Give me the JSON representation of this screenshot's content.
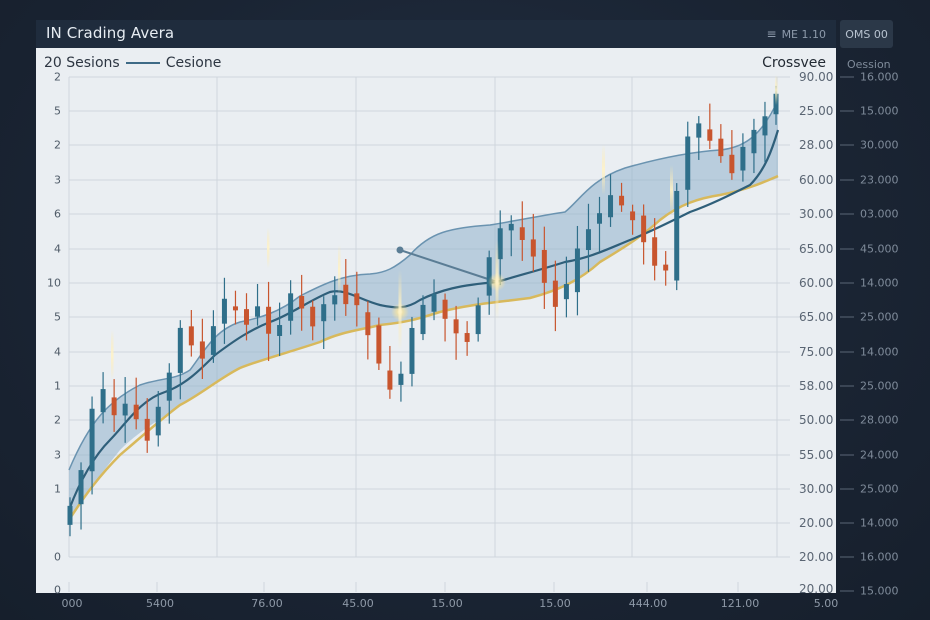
{
  "window": {
    "title": "IN Crading Avera",
    "menu_indicator": "ME 1.10",
    "oms_button_label": "OMS 00"
  },
  "legend": {
    "left_label": "20 Sesions",
    "series_label": "Cesione",
    "crossover_label": "Crossvee"
  },
  "colors": {
    "background": "#1a2433",
    "panel": "#eaeef2",
    "bullish": "#2f6f8a",
    "bearish": "#c8552e",
    "band_fill": "#8fb3cc",
    "band_edge": "#5d88a6",
    "ma_line": "#2f5f7a",
    "lower_line": "#d4b560",
    "grid": "#cfd5dc"
  },
  "chart_data": {
    "type": "candlestick",
    "title": "IN Crading Avera",
    "subtitle": "20 Sesions — Cesione",
    "annotation": "Crossvee",
    "grid": true,
    "left_axis_ticks": [
      "2",
      "5",
      "2",
      "3",
      "6",
      "4",
      "10",
      "5",
      "4",
      "1",
      "2",
      "3",
      "1",
      "0",
      "0"
    ],
    "right_axis_ticks": [
      "90.00",
      "25.00",
      "28.00",
      "60.00",
      "30.00",
      "65.00",
      "60.00",
      "65.00",
      "75.00",
      "58.00",
      "50.00",
      "55.00",
      "30.00",
      "20.00",
      "20.00",
      "20.00"
    ],
    "outer_axis_label": "Oession",
    "outer_axis_ticks": [
      "16.000",
      "15.000",
      "30.000",
      "23.000",
      "03.000",
      "45.000",
      "14.000",
      "25.000",
      "14.000",
      "25.000",
      "28.000",
      "24.000",
      "25.000",
      "14.000",
      "16.000",
      "15.000"
    ],
    "x_tick_labels": [
      "000",
      "5400",
      "76.00",
      "45.00",
      "15.00",
      "15.00",
      "444.00",
      "121.00",
      "5.00"
    ],
    "series": [
      {
        "name": "Price (candles, approx. pixel-y close path)",
        "values": [
          505,
          470,
          410,
          395,
          420,
          410,
          420,
          440,
          400,
          375,
          330,
          340,
          360,
          330,
          300,
          310,
          320,
          310,
          330,
          320,
          300,
          310,
          320,
          305,
          290,
          300,
          310,
          330,
          370,
          385,
          380,
          330,
          310,
          300,
          320,
          330,
          340,
          300,
          260,
          230,
          225,
          240,
          250,
          280,
          300,
          290,
          250,
          230,
          215,
          200,
          205,
          220,
          240,
          260,
          275,
          190,
          140,
          130,
          140,
          160,
          170,
          150,
          130,
          110,
          95
        ]
      },
      {
        "name": "Moving average",
        "values": [
          510,
          470,
          440,
          420,
          400,
          385,
          360,
          345,
          335,
          320,
          310,
          295,
          290,
          295,
          310,
          300,
          290,
          280,
          270,
          260,
          250,
          240,
          220,
          200,
          180,
          165,
          150,
          110
        ]
      },
      {
        "name": "Lower band",
        "values": [
          520,
          490,
          455,
          445,
          430,
          405,
          370,
          350,
          340,
          330,
          320,
          310,
          305,
          295,
          280,
          265,
          250,
          235,
          215,
          205,
          200,
          190,
          175
        ]
      }
    ],
    "crossover_points": [
      {
        "x": 400,
        "y": 312
      },
      {
        "x": 497,
        "y": 282
      }
    ],
    "pointer_annotation": {
      "from": {
        "x": 400,
        "y": 250
      },
      "to": {
        "x": 497,
        "y": 282
      }
    }
  }
}
